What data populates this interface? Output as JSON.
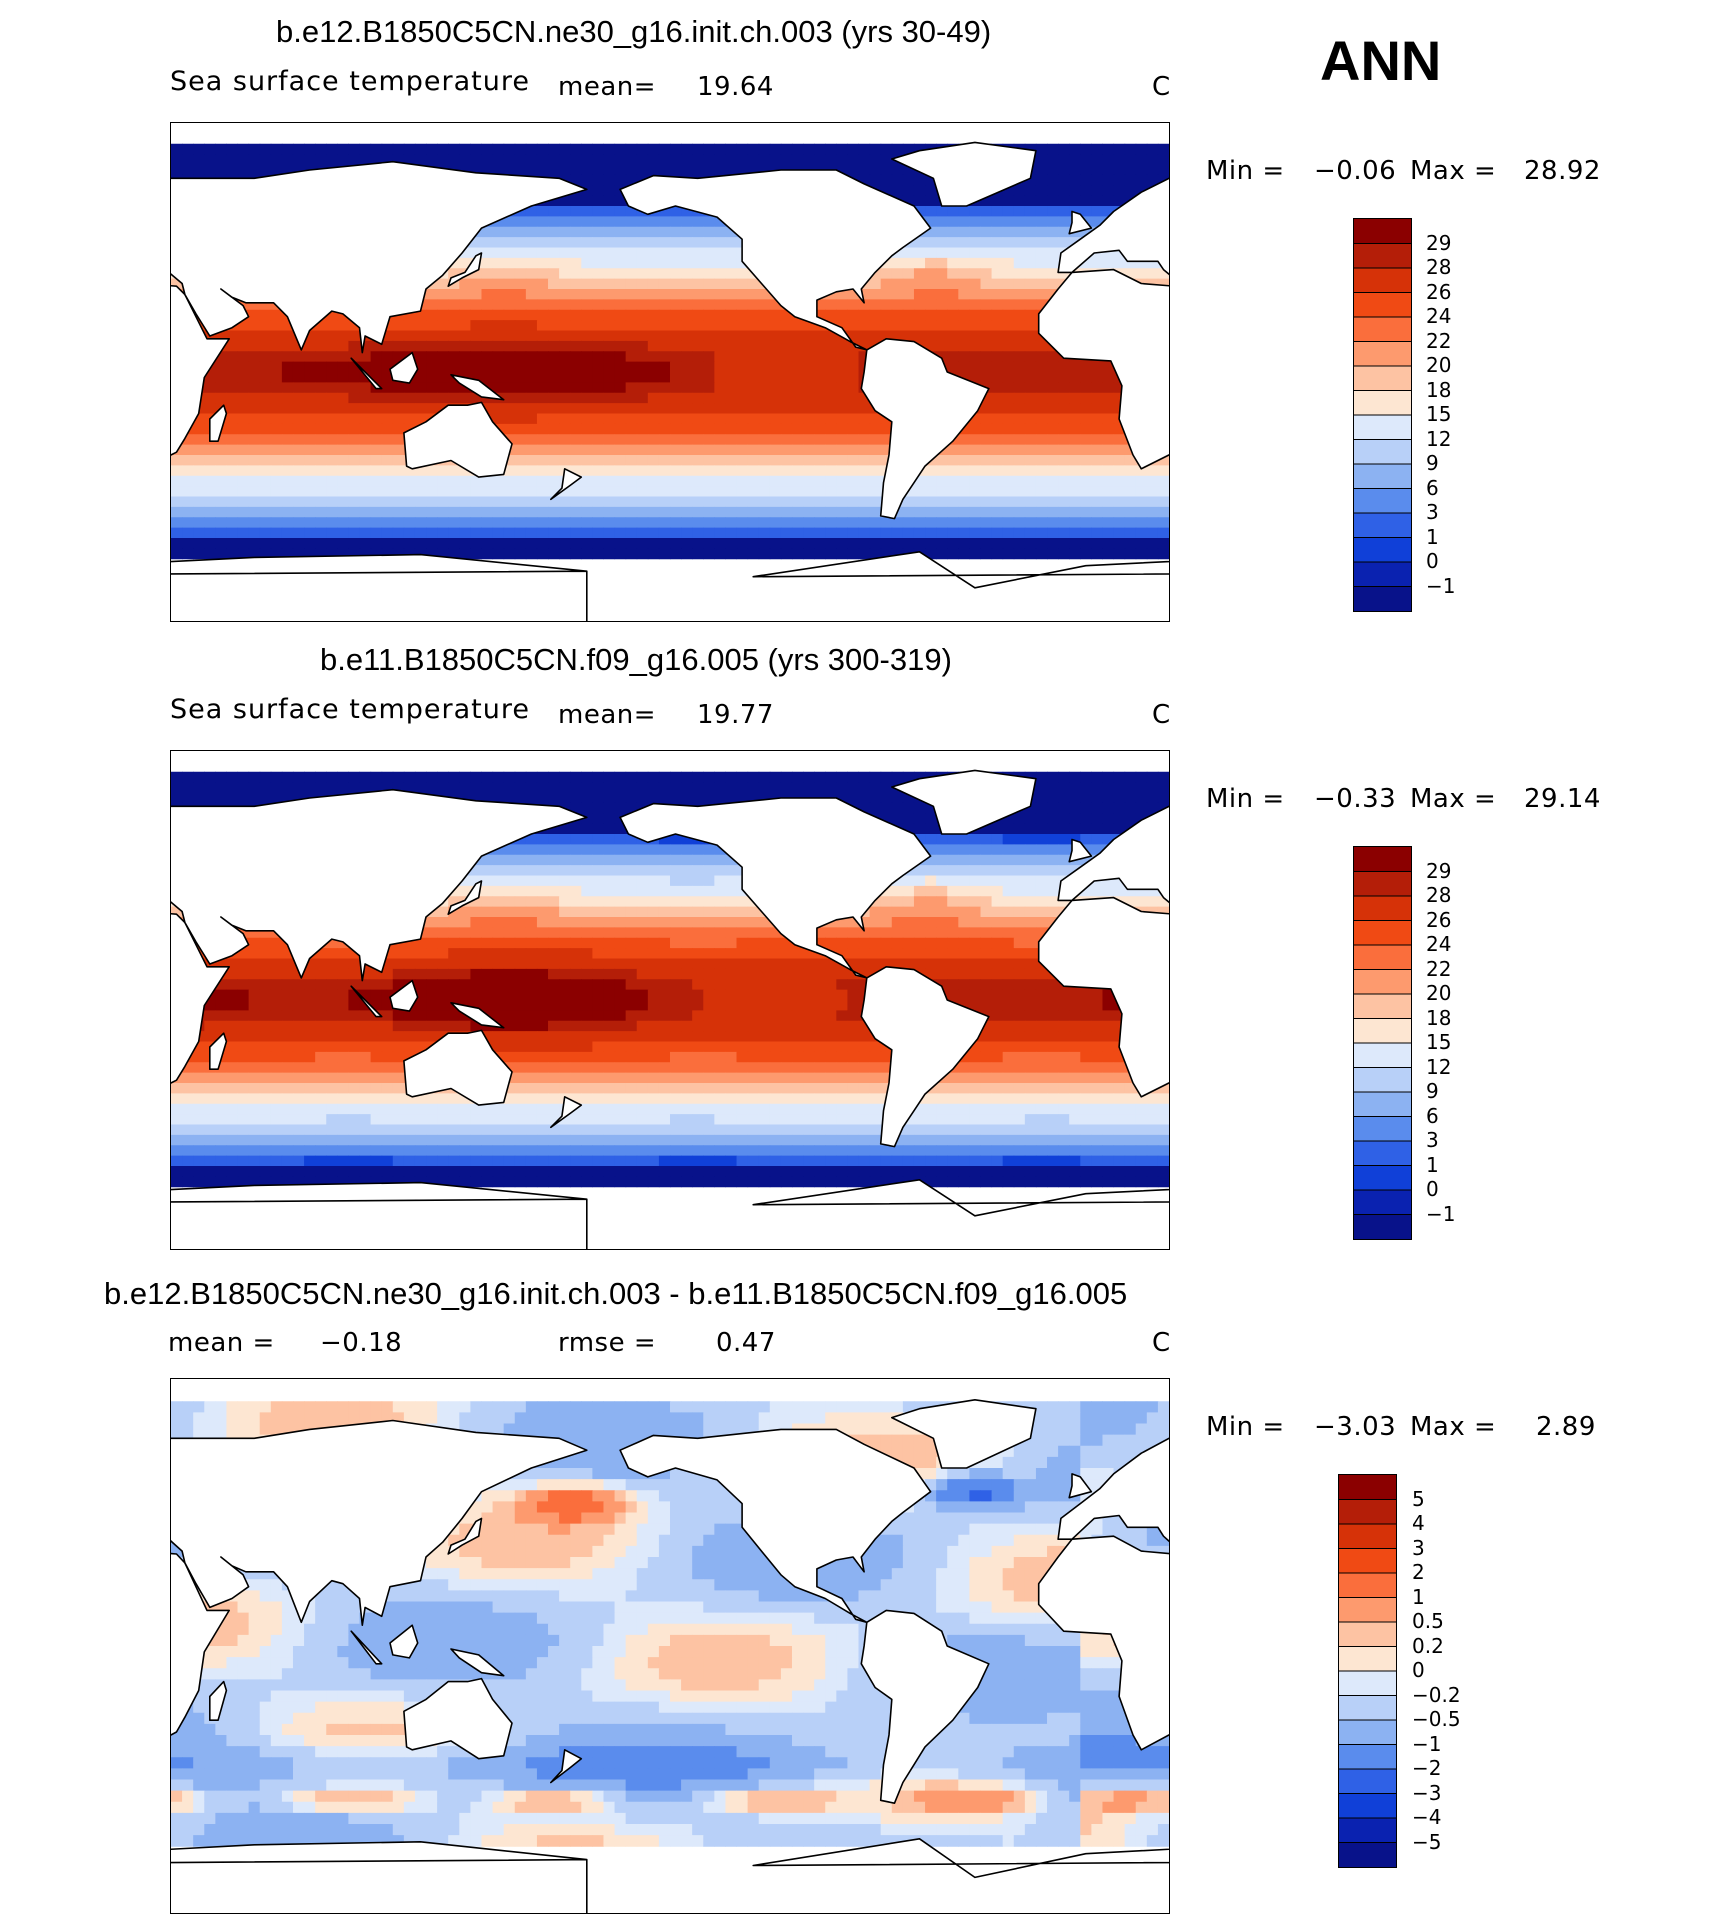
{
  "season": "ANN",
  "chart_data": [
    {
      "type": "heatmap",
      "title": "b.e12.B1850C5CN.ne30_g16.init.ch.003 (yrs 30-49)",
      "variable": "Sea surface temperature",
      "mean_label": "mean=",
      "mean": "19.64",
      "units": "C",
      "min_label": "Min =",
      "min": "−0.06",
      "max_label": "Max =",
      "max": "28.92",
      "levels": [
        "29",
        "28",
        "26",
        "24",
        "22",
        "20",
        "18",
        "15",
        "12",
        "9",
        "6",
        "3",
        "1",
        "0",
        "−1"
      ],
      "colors": [
        "#8b0000",
        "#b41e08",
        "#d63208",
        "#f04a14",
        "#fa6e3c",
        "#fd9a6e",
        "#fdc3a3",
        "#fde6d2",
        "#dde9fb",
        "#b8d0f8",
        "#8cb2f2",
        "#5a8ced",
        "#2f61e6",
        "#1040d8",
        "#0a22b0",
        "#08128a"
      ]
    },
    {
      "type": "heatmap",
      "title": "b.e11.B1850C5CN.f09_g16.005 (yrs 300-319)",
      "variable": "Sea surface temperature",
      "mean_label": "mean=",
      "mean": "19.77",
      "units": "C",
      "min_label": "Min =",
      "min": "−0.33",
      "max_label": "Max =",
      "max": "29.14",
      "levels": [
        "29",
        "28",
        "26",
        "24",
        "22",
        "20",
        "18",
        "15",
        "12",
        "9",
        "6",
        "3",
        "1",
        "0",
        "−1"
      ],
      "colors": [
        "#8b0000",
        "#b41e08",
        "#d63208",
        "#f04a14",
        "#fa6e3c",
        "#fd9a6e",
        "#fdc3a3",
        "#fde6d2",
        "#dde9fb",
        "#b8d0f8",
        "#8cb2f2",
        "#5a8ced",
        "#2f61e6",
        "#1040d8",
        "#0a22b0",
        "#08128a"
      ]
    },
    {
      "type": "heatmap",
      "title": "b.e12.B1850C5CN.ne30_g16.init.ch.003 - b.e11.B1850C5CN.f09_g16.005",
      "mean_label": "mean =",
      "mean": "−0.18",
      "rmse_label": "rmse =",
      "rmse": "0.47",
      "units": "C",
      "min_label": "Min =",
      "min": "−3.03",
      "max_label": "Max =",
      "max": "2.89",
      "levels": [
        "5",
        "4",
        "3",
        "2",
        "1",
        "0.5",
        "0.2",
        "0",
        "−0.2",
        "−0.5",
        "−1",
        "−2",
        "−3",
        "−4",
        "−5"
      ],
      "colors": [
        "#8b0000",
        "#b41e08",
        "#d63208",
        "#f04a14",
        "#fa6e3c",
        "#fd9a6e",
        "#fdc3a3",
        "#fde6d2",
        "#dde9fb",
        "#b8d0f8",
        "#8cb2f2",
        "#5a8ced",
        "#2f61e6",
        "#1040d8",
        "#0a22b0",
        "#08128a"
      ]
    }
  ]
}
